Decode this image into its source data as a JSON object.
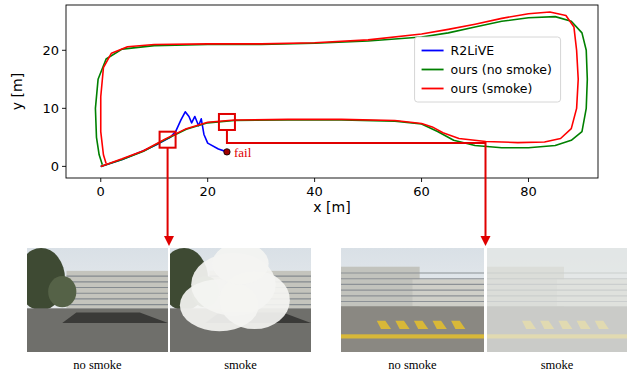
{
  "chart_data": {
    "type": "line",
    "x_label": "x [m]",
    "y_label": "y [m]",
    "xlim": [
      -6.5,
      93
    ],
    "ylim": [
      -2,
      27.8
    ],
    "xticks": [
      0,
      20,
      40,
      60,
      80
    ],
    "yticks": [
      0,
      10,
      20
    ],
    "grid": false,
    "legend": "right",
    "series": [
      {
        "name": "R2LiVE",
        "color": "#0000ff",
        "x": [
          0,
          4,
          8,
          11,
          13,
          14,
          15,
          15.8,
          16.5,
          17,
          17.6,
          18.3,
          18.8,
          19.3,
          20,
          22,
          23.6
        ],
        "values": [
          0,
          1.2,
          2.7,
          4,
          5,
          6,
          8,
          9.4,
          8.6,
          7.5,
          8.6,
          7,
          8.2,
          5.5,
          4,
          3,
          2.5
        ]
      },
      {
        "name": "ours (no smoke)",
        "color": "#008000",
        "x": [
          0,
          4,
          8,
          12,
          16,
          20,
          25,
          35,
          45,
          55,
          60,
          63,
          66,
          70,
          75,
          80,
          85,
          88,
          90,
          90.8,
          91,
          90.8,
          90,
          88,
          85,
          80,
          75,
          70,
          65,
          60,
          50,
          40,
          30,
          20,
          10,
          4,
          1,
          -0.5,
          -1,
          -0.8,
          -0.3,
          0.3
        ],
        "values": [
          0,
          1.2,
          2.6,
          4.6,
          6.4,
          7.5,
          7.9,
          8,
          8,
          7.8,
          7.3,
          6,
          4.5,
          3.6,
          3.2,
          3.2,
          3.6,
          4.5,
          6,
          10,
          15,
          20,
          23,
          25,
          25.8,
          25.6,
          25,
          24,
          23,
          22.3,
          21.6,
          21.2,
          21,
          21,
          20.8,
          20.2,
          18.5,
          15,
          10,
          5,
          2,
          0.3
        ]
      },
      {
        "name": "ours (smoke)",
        "color": "#ff0000",
        "x": [
          0,
          4,
          8,
          12,
          16,
          20,
          25,
          35,
          45,
          55,
          60,
          62,
          64,
          67,
          72,
          78,
          83,
          86,
          88,
          89,
          89.3,
          89,
          88.5,
          87,
          84,
          80,
          75,
          70,
          65,
          60,
          50,
          40,
          30,
          20,
          10,
          5,
          2,
          0.5,
          0,
          0,
          0.5,
          1
        ],
        "values": [
          0,
          1.3,
          2.7,
          4.7,
          6.5,
          7.6,
          8,
          8.1,
          8.1,
          7.9,
          7.4,
          6.8,
          5.8,
          4.8,
          4.3,
          4.1,
          4.2,
          4.8,
          6.5,
          10,
          15,
          20,
          24,
          26,
          26.6,
          26.3,
          25.5,
          24.5,
          23.6,
          22.8,
          21.8,
          21.3,
          21.1,
          21.1,
          21,
          20.6,
          19.5,
          17,
          12,
          6,
          2,
          0.5
        ]
      }
    ],
    "annotations": [
      {
        "text": "fail",
        "x": 23.6,
        "y": 2.5,
        "color": "#e00000"
      }
    ],
    "highlights": [
      {
        "x": 12.5,
        "y": 4.6
      },
      {
        "x": 23.6,
        "y": 7.65
      }
    ],
    "images": [
      {
        "caption": "no smoke"
      },
      {
        "caption": "smoke"
      },
      {
        "caption": "no smoke"
      },
      {
        "caption": "smoke"
      }
    ]
  }
}
